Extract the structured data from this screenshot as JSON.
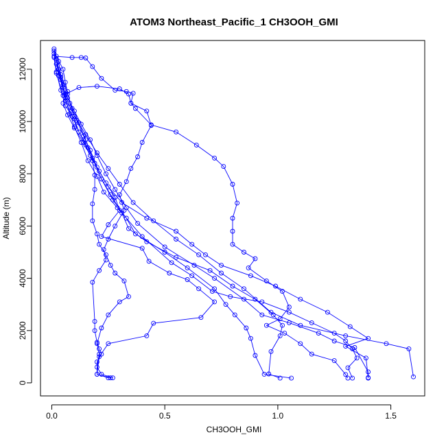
{
  "chart_data": {
    "type": "line",
    "title": "ATOM3 Northeast_Pacific_1 CH3OOH_GMI",
    "xlabel": "CH3OOH_GMI",
    "ylabel": "Altitude (m)",
    "xlim": [
      -0.05,
      1.65
    ],
    "ylim": [
      -500,
      13100
    ],
    "x_ticks": [
      "0.0",
      "0.5",
      "1.0",
      "1.5"
    ],
    "y_ticks": [
      "0",
      "2000",
      "4000",
      "6000",
      "8000",
      "10000",
      "12000"
    ],
    "grid": false,
    "marker": "open-circle",
    "color": "#0000ff",
    "series": [
      {
        "values": [
          [
            0.01,
            12780
          ],
          [
            0.02,
            12500
          ],
          [
            0.05,
            12000
          ],
          [
            0.06,
            11500
          ],
          [
            0.08,
            10700
          ],
          [
            0.1,
            10200
          ],
          [
            0.15,
            9500
          ],
          [
            0.2,
            8800
          ],
          [
            0.25,
            8200
          ],
          [
            0.3,
            7600
          ],
          [
            0.36,
            6900
          ],
          [
            0.45,
            6200
          ],
          [
            0.55,
            5500
          ],
          [
            0.65,
            4900
          ],
          [
            0.75,
            4200
          ],
          [
            0.85,
            3600
          ],
          [
            0.97,
            2700
          ],
          [
            1.1,
            2200
          ],
          [
            1.3,
            1800
          ],
          [
            1.48,
            1500
          ],
          [
            1.58,
            1300
          ],
          [
            1.6,
            230
          ]
        ]
      },
      {
        "values": [
          [
            0.01,
            12700
          ],
          [
            0.03,
            12000
          ],
          [
            0.05,
            11300
          ],
          [
            0.07,
            10900
          ],
          [
            0.1,
            10400
          ],
          [
            0.13,
            9900
          ],
          [
            0.17,
            9300
          ],
          [
            0.2,
            8700
          ],
          [
            0.24,
            8000
          ],
          [
            0.28,
            7400
          ],
          [
            0.33,
            6700
          ],
          [
            0.38,
            6100
          ],
          [
            0.5,
            5200
          ],
          [
            0.63,
            4500
          ],
          [
            0.72,
            4000
          ],
          [
            0.85,
            3200
          ],
          [
            0.93,
            2600
          ],
          [
            1.05,
            2300
          ],
          [
            1.18,
            1900
          ],
          [
            1.25,
            1600
          ],
          [
            1.34,
            1350
          ],
          [
            1.4,
            420
          ],
          [
            1.4,
            180
          ]
        ]
      },
      {
        "values": [
          [
            0.01,
            12600
          ],
          [
            0.02,
            11900
          ],
          [
            0.04,
            11200
          ],
          [
            0.06,
            10600
          ],
          [
            0.1,
            10100
          ],
          [
            0.12,
            9600
          ],
          [
            0.16,
            9000
          ],
          [
            0.19,
            8400
          ],
          [
            0.22,
            7800
          ],
          [
            0.26,
            7200
          ],
          [
            0.31,
            6500
          ],
          [
            0.34,
            5900
          ],
          [
            0.42,
            5400
          ],
          [
            0.55,
            4800
          ],
          [
            0.7,
            4300
          ],
          [
            0.8,
            3700
          ],
          [
            0.9,
            3200
          ],
          [
            0.98,
            2600
          ],
          [
            1.02,
            2200
          ],
          [
            1.01,
            1800
          ],
          [
            0.97,
            1200
          ],
          [
            0.96,
            340
          ],
          [
            1.01,
            180
          ]
        ]
      },
      {
        "values": [
          [
            0.02,
            12400
          ],
          [
            0.04,
            11700
          ],
          [
            0.07,
            11050
          ],
          [
            0.09,
            10500
          ],
          [
            0.12,
            9950
          ],
          [
            0.15,
            9300
          ],
          [
            0.18,
            8600
          ],
          [
            0.22,
            7800
          ],
          [
            0.27,
            7000
          ],
          [
            0.33,
            6300
          ],
          [
            0.37,
            5700
          ],
          [
            0.5,
            5000
          ],
          [
            0.6,
            4400
          ],
          [
            0.72,
            3600
          ],
          [
            0.77,
            3000
          ],
          [
            0.81,
            2600
          ],
          [
            0.86,
            2100
          ],
          [
            0.88,
            1700
          ],
          [
            0.9,
            1050
          ],
          [
            0.94,
            330
          ],
          [
            1.06,
            180
          ]
        ]
      },
      {
        "values": [
          [
            0.03,
            12000
          ],
          [
            0.05,
            11400
          ],
          [
            0.06,
            10900
          ],
          [
            0.08,
            10300
          ],
          [
            0.1,
            9800
          ],
          [
            0.13,
            9200
          ],
          [
            0.16,
            8500
          ],
          [
            0.2,
            7900
          ],
          [
            0.23,
            7300
          ],
          [
            0.29,
            6700
          ],
          [
            0.4,
            5600
          ],
          [
            0.53,
            4600
          ],
          [
            0.62,
            4100
          ],
          [
            0.71,
            3500
          ],
          [
            0.79,
            3300
          ],
          [
            0.93,
            3100
          ],
          [
            1.05,
            2700
          ],
          [
            1.15,
            2300
          ],
          [
            1.25,
            1900
          ],
          [
            1.3,
            1600
          ],
          [
            1.33,
            1300
          ],
          [
            1.35,
            950
          ],
          [
            1.31,
            580
          ],
          [
            1.33,
            180
          ]
        ]
      },
      {
        "values": [
          [
            0.01,
            12450
          ],
          [
            0.02,
            11850
          ],
          [
            0.05,
            11000
          ],
          [
            0.12,
            11300
          ],
          [
            0.2,
            11350
          ],
          [
            0.3,
            11250
          ],
          [
            0.34,
            11050
          ],
          [
            0.35,
            10700
          ],
          [
            0.42,
            10400
          ],
          [
            0.44,
            9850
          ],
          [
            0.4,
            9200
          ],
          [
            0.38,
            8650
          ],
          [
            0.35,
            8200
          ],
          [
            0.33,
            7700
          ],
          [
            0.3,
            7200
          ],
          [
            0.32,
            6600
          ],
          [
            0.28,
            6000
          ],
          [
            0.25,
            5500
          ],
          [
            0.23,
            5100
          ],
          [
            0.24,
            4700
          ],
          [
            0.21,
            4300
          ],
          [
            0.18,
            3850
          ],
          [
            0.19,
            2350
          ],
          [
            0.19,
            2000
          ],
          [
            0.2,
            1550
          ],
          [
            0.21,
            1300
          ],
          [
            0.22,
            1100
          ],
          [
            0.2,
            800
          ],
          [
            0.2,
            330
          ],
          [
            0.26,
            190
          ]
        ]
      },
      {
        "values": [
          [
            0.01,
            12500
          ],
          [
            0.09,
            12450
          ],
          [
            0.13,
            12450
          ],
          [
            0.15,
            12430
          ],
          [
            0.18,
            12100
          ],
          [
            0.22,
            11650
          ],
          [
            0.28,
            11200
          ],
          [
            0.33,
            11150
          ],
          [
            0.36,
            11080
          ],
          [
            0.35,
            10700
          ],
          [
            0.37,
            10500
          ],
          [
            0.44,
            9870
          ],
          [
            0.55,
            9600
          ],
          [
            0.64,
            9100
          ],
          [
            0.72,
            8600
          ],
          [
            0.76,
            8280
          ],
          [
            0.8,
            7600
          ],
          [
            0.82,
            6880
          ],
          [
            0.8,
            6300
          ],
          [
            0.8,
            5800
          ],
          [
            0.8,
            5300
          ],
          [
            0.85,
            5000
          ],
          [
            0.9,
            4750
          ],
          [
            0.87,
            4400
          ],
          [
            0.95,
            3900
          ],
          [
            1.02,
            3500
          ],
          [
            1.05,
            2900
          ],
          [
            1.01,
            2450
          ],
          [
            0.95,
            2200
          ],
          [
            1.03,
            1900
          ],
          [
            1.1,
            1500
          ],
          [
            1.15,
            1100
          ],
          [
            1.25,
            850
          ],
          [
            1.3,
            320
          ],
          [
            1.31,
            180
          ]
        ]
      },
      {
        "values": [
          [
            0.02,
            12200
          ],
          [
            0.04,
            11600
          ],
          [
            0.06,
            10800
          ],
          [
            0.09,
            10200
          ],
          [
            0.12,
            9600
          ],
          [
            0.15,
            9100
          ],
          [
            0.18,
            8500
          ],
          [
            0.19,
            7950
          ],
          [
            0.19,
            7400
          ],
          [
            0.18,
            6850
          ],
          [
            0.18,
            6200
          ],
          [
            0.2,
            5700
          ],
          [
            0.21,
            5300
          ],
          [
            0.24,
            4900
          ],
          [
            0.26,
            4500
          ],
          [
            0.28,
            4200
          ],
          [
            0.32,
            3900
          ],
          [
            0.34,
            3300
          ],
          [
            0.3,
            3100
          ],
          [
            0.25,
            2600
          ],
          [
            0.22,
            2100
          ],
          [
            0.2,
            1500
          ],
          [
            0.21,
            1100
          ],
          [
            0.2,
            600
          ],
          [
            0.22,
            330
          ],
          [
            0.27,
            190
          ]
        ]
      },
      {
        "values": [
          [
            0.03,
            12300
          ],
          [
            0.04,
            11800
          ],
          [
            0.07,
            11150
          ],
          [
            0.05,
            10700
          ],
          [
            0.07,
            10250
          ],
          [
            0.1,
            9750
          ],
          [
            0.14,
            9200
          ],
          [
            0.17,
            8700
          ],
          [
            0.21,
            8100
          ],
          [
            0.25,
            7500
          ],
          [
            0.31,
            6900
          ],
          [
            0.42,
            6300
          ],
          [
            0.55,
            5800
          ],
          [
            0.62,
            5300
          ],
          [
            0.68,
            4900
          ],
          [
            0.75,
            4500
          ],
          [
            0.88,
            4100
          ],
          [
            0.99,
            3700
          ],
          [
            1.1,
            3200
          ],
          [
            1.22,
            2700
          ],
          [
            1.32,
            2150
          ],
          [
            1.4,
            1700
          ],
          [
            1.3,
            1400
          ],
          [
            1.39,
            950
          ],
          [
            1.4,
            200
          ]
        ]
      },
      {
        "values": [
          [
            0.02,
            12350
          ],
          [
            0.03,
            11750
          ],
          [
            0.06,
            11050
          ],
          [
            0.08,
            10550
          ],
          [
            0.11,
            10050
          ],
          [
            0.14,
            9450
          ],
          [
            0.17,
            8900
          ],
          [
            0.2,
            8250
          ],
          [
            0.24,
            7650
          ],
          [
            0.28,
            7100
          ],
          [
            0.3,
            6600
          ],
          [
            0.25,
            6050
          ],
          [
            0.22,
            5600
          ],
          [
            0.4,
            5150
          ],
          [
            0.43,
            4650
          ],
          [
            0.52,
            4200
          ],
          [
            0.6,
            3950
          ],
          [
            0.65,
            3600
          ],
          [
            0.72,
            3100
          ],
          [
            0.66,
            2500
          ],
          [
            0.45,
            2280
          ],
          [
            0.42,
            1800
          ],
          [
            0.25,
            1500
          ],
          [
            0.21,
            1000
          ],
          [
            0.2,
            330
          ],
          [
            0.25,
            190
          ]
        ]
      }
    ]
  }
}
